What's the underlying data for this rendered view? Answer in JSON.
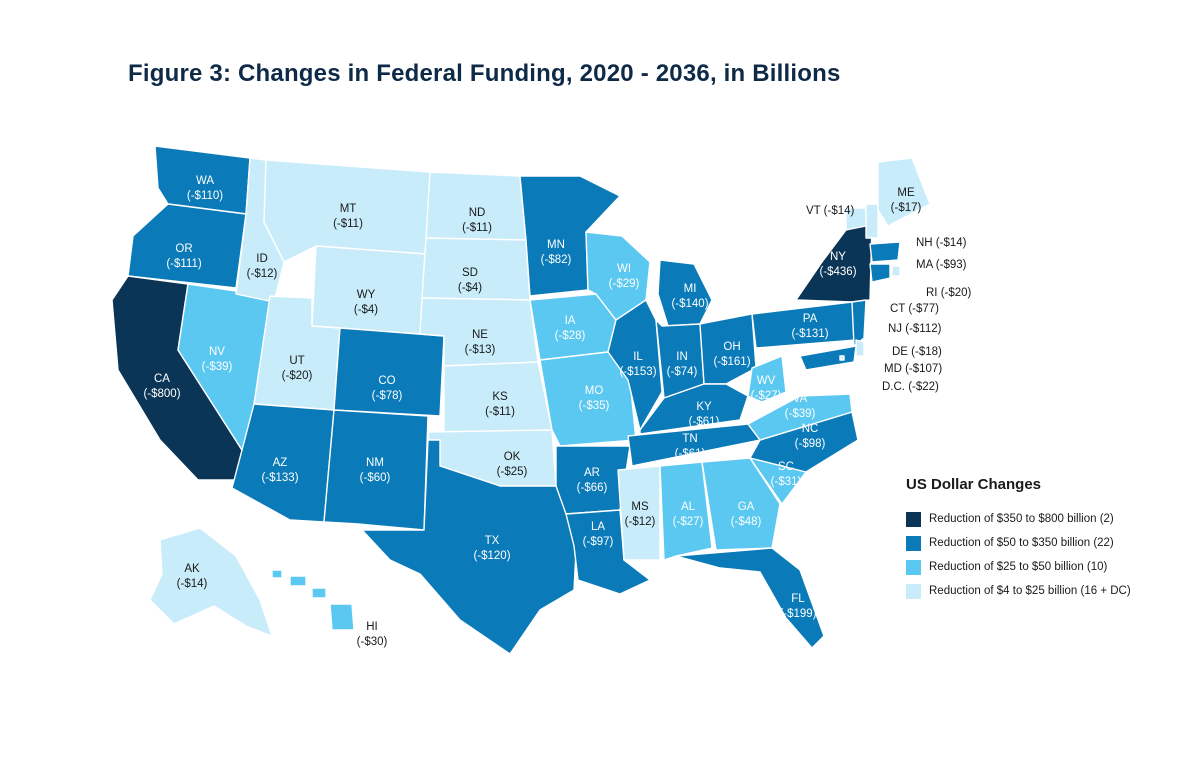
{
  "title": "Figure 3: Changes in Federal Funding, 2020 - 2036, in Billions",
  "colors": {
    "tier1": "#0b3556",
    "tier2": "#0a7ab8",
    "tier3": "#5ac8f0",
    "tier4": "#c9ecfb"
  },
  "legend": {
    "title": "US Dollar Changes",
    "items": [
      {
        "tier": "tier1",
        "label": "Reduction of $350 to $800 billion (2)"
      },
      {
        "tier": "tier2",
        "label": "Reduction of $50 to $350 billion (22)"
      },
      {
        "tier": "tier3",
        "label": "Reduction of $25 to $50 billion (10)"
      },
      {
        "tier": "tier4",
        "label": "Reduction of $4 to $25 billion (16 + DC)"
      }
    ]
  },
  "states": {
    "WA": {
      "abbr": "WA",
      "value": "(-$110)",
      "tier": "tier2"
    },
    "OR": {
      "abbr": "OR",
      "value": "(-$111)",
      "tier": "tier2"
    },
    "CA": {
      "abbr": "CA",
      "value": "(-$800)",
      "tier": "tier1"
    },
    "NV": {
      "abbr": "NV",
      "value": "(-$39)",
      "tier": "tier3"
    },
    "ID": {
      "abbr": "ID",
      "value": "(-$12)",
      "tier": "tier4"
    },
    "MT": {
      "abbr": "MT",
      "value": "(-$11)",
      "tier": "tier4"
    },
    "WY": {
      "abbr": "WY",
      "value": "(-$4)",
      "tier": "tier4"
    },
    "UT": {
      "abbr": "UT",
      "value": "(-$20)",
      "tier": "tier4"
    },
    "AZ": {
      "abbr": "AZ",
      "value": "(-$133)",
      "tier": "tier2"
    },
    "CO": {
      "abbr": "CO",
      "value": "(-$78)",
      "tier": "tier2"
    },
    "NM": {
      "abbr": "NM",
      "value": "(-$60)",
      "tier": "tier2"
    },
    "ND": {
      "abbr": "ND",
      "value": "(-$11)",
      "tier": "tier4"
    },
    "SD": {
      "abbr": "SD",
      "value": "(-$4)",
      "tier": "tier4"
    },
    "NE": {
      "abbr": "NE",
      "value": "(-$13)",
      "tier": "tier4"
    },
    "KS": {
      "abbr": "KS",
      "value": "(-$11)",
      "tier": "tier4"
    },
    "OK": {
      "abbr": "OK",
      "value": "(-$25)",
      "tier": "tier4"
    },
    "TX": {
      "abbr": "TX",
      "value": "(-$120)",
      "tier": "tier2"
    },
    "MN": {
      "abbr": "MN",
      "value": "(-$82)",
      "tier": "tier2"
    },
    "IA": {
      "abbr": "IA",
      "value": "(-$28)",
      "tier": "tier3"
    },
    "MO": {
      "abbr": "MO",
      "value": "(-$35)",
      "tier": "tier3"
    },
    "AR": {
      "abbr": "AR",
      "value": "(-$66)",
      "tier": "tier2"
    },
    "LA": {
      "abbr": "LA",
      "value": "(-$97)",
      "tier": "tier2"
    },
    "WI": {
      "abbr": "WI",
      "value": "(-$29)",
      "tier": "tier3"
    },
    "IL": {
      "abbr": "IL",
      "value": "(-$153)",
      "tier": "tier2"
    },
    "MI": {
      "abbr": "MI",
      "value": "(-$140)",
      "tier": "tier2"
    },
    "IN": {
      "abbr": "IN",
      "value": "(-$74)",
      "tier": "tier2"
    },
    "OH": {
      "abbr": "OH",
      "value": "(-$161)",
      "tier": "tier2"
    },
    "KY": {
      "abbr": "KY",
      "value": "(-$61)",
      "tier": "tier2"
    },
    "TN": {
      "abbr": "TN",
      "value": "(-$61)",
      "tier": "tier2"
    },
    "MS": {
      "abbr": "MS",
      "value": "(-$12)",
      "tier": "tier4"
    },
    "AL": {
      "abbr": "AL",
      "value": "(-$27)",
      "tier": "tier3"
    },
    "GA": {
      "abbr": "GA",
      "value": "(-$48)",
      "tier": "tier3"
    },
    "FL": {
      "abbr": "FL",
      "value": "(-$199)",
      "tier": "tier2"
    },
    "SC": {
      "abbr": "SC",
      "value": "(-$31)",
      "tier": "tier3"
    },
    "NC": {
      "abbr": "NC",
      "value": "(-$98)",
      "tier": "tier2"
    },
    "VA": {
      "abbr": "VA",
      "value": "(-$39)",
      "tier": "tier3"
    },
    "WV": {
      "abbr": "WV",
      "value": "(-$27)",
      "tier": "tier3"
    },
    "PA": {
      "abbr": "PA",
      "value": "(-$131)",
      "tier": "tier2"
    },
    "NY": {
      "abbr": "NY",
      "value": "(-$436)",
      "tier": "tier1"
    },
    "VT": {
      "abbr": "VT",
      "value": "(-$14)",
      "tier": "tier4"
    },
    "NH": {
      "abbr": "NH",
      "value": "(-$14)",
      "tier": "tier4"
    },
    "ME": {
      "abbr": "ME",
      "value": "(-$17)",
      "tier": "tier4"
    },
    "MA": {
      "abbr": "MA",
      "value": "(-$93)",
      "tier": "tier2"
    },
    "RI": {
      "abbr": "RI",
      "value": "(-$20)",
      "tier": "tier4"
    },
    "CT": {
      "abbr": "CT",
      "value": "(-$77)",
      "tier": "tier2"
    },
    "NJ": {
      "abbr": "NJ",
      "value": "(-$112)",
      "tier": "tier2"
    },
    "DE": {
      "abbr": "DE",
      "value": "(-$18)",
      "tier": "tier4"
    },
    "MD": {
      "abbr": "MD",
      "value": "(-$107)",
      "tier": "tier2"
    },
    "DC": {
      "abbr": "D.C.",
      "value": "(-$22)",
      "tier": "tier4"
    },
    "AK": {
      "abbr": "AK",
      "value": "(-$14)",
      "tier": "tier4"
    },
    "HI": {
      "abbr": "HI",
      "value": "(-$30)",
      "tier": "tier3"
    }
  },
  "outside_labels": {
    "VT": "VT (-$14)",
    "NH": "NH (-$14)",
    "MA": "MA (-$93)",
    "RI": "RI (-$20)",
    "CT": "CT (-$77)",
    "NJ": "NJ (-$112)",
    "DE": "DE (-$18)",
    "MD": "MD (-$107)",
    "DC": "D.C. (-$22)"
  }
}
